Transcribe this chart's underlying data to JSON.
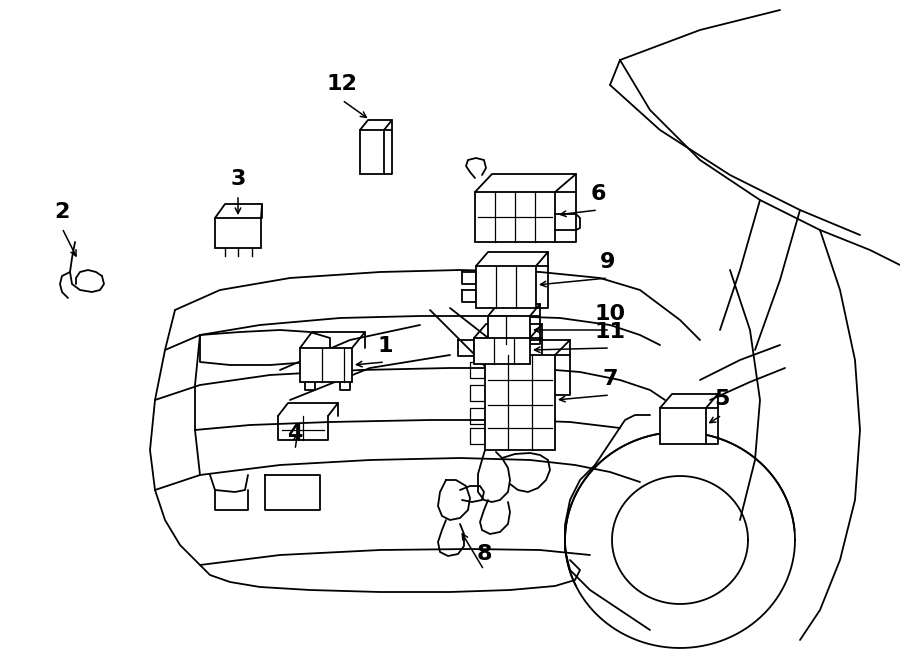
{
  "background_color": "#ffffff",
  "line_color": "#000000",
  "fig_width": 9.0,
  "fig_height": 6.61,
  "dpi": 100,
  "lw": 1.3
}
